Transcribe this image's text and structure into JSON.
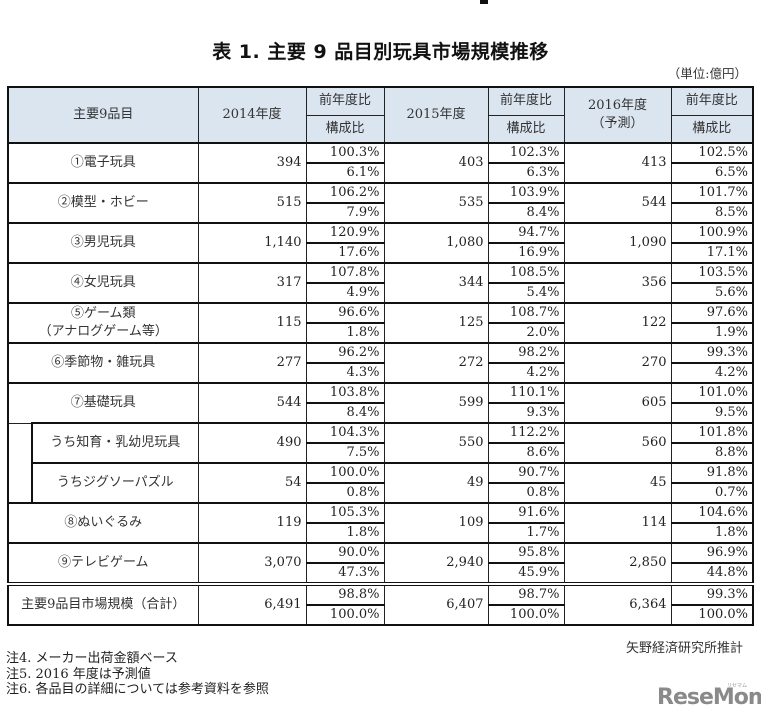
{
  "title": "表 1. 主要 9 品目別玩具市場規模推移",
  "unit": "（単位:億円）",
  "header": {
    "item": "主要9品目",
    "y2014": "2014年度",
    "y2015": "2015年度",
    "y2016": "2016年度",
    "y2016_note": "（予測）",
    "yoy": "前年度比",
    "share": "構成比"
  },
  "rows": [
    {
      "name": "①電子玩具",
      "v2014": "394",
      "yoy2014": "100.3%",
      "sh2014": "6.1%",
      "v2015": "403",
      "yoy2015": "102.3%",
      "sh2015": "6.3%",
      "v2016": "413",
      "yoy2016": "102.5%",
      "sh2016": "6.5%"
    },
    {
      "name": "②模型・ホビー",
      "v2014": "515",
      "yoy2014": "106.2%",
      "sh2014": "7.9%",
      "v2015": "535",
      "yoy2015": "103.9%",
      "sh2015": "8.4%",
      "v2016": "544",
      "yoy2016": "101.7%",
      "sh2016": "8.5%"
    },
    {
      "name": "③男児玩具",
      "v2014": "1,140",
      "yoy2014": "120.9%",
      "sh2014": "17.6%",
      "v2015": "1,080",
      "yoy2015": "94.7%",
      "sh2015": "16.9%",
      "v2016": "1,090",
      "yoy2016": "100.9%",
      "sh2016": "17.1%"
    },
    {
      "name": "④女児玩具",
      "v2014": "317",
      "yoy2014": "107.8%",
      "sh2014": "4.9%",
      "v2015": "344",
      "yoy2015": "108.5%",
      "sh2015": "5.4%",
      "v2016": "356",
      "yoy2016": "103.5%",
      "sh2016": "5.6%"
    },
    {
      "name": "⑤ゲーム類",
      "name2": "（アナログゲーム等）",
      "v2014": "115",
      "yoy2014": "96.6%",
      "sh2014": "1.8%",
      "v2015": "125",
      "yoy2015": "108.7%",
      "sh2015": "2.0%",
      "v2016": "122",
      "yoy2016": "97.6%",
      "sh2016": "1.9%"
    },
    {
      "name": "⑥季節物・雑玩具",
      "v2014": "277",
      "yoy2014": "96.2%",
      "sh2014": "4.3%",
      "v2015": "272",
      "yoy2015": "98.2%",
      "sh2015": "4.2%",
      "v2016": "270",
      "yoy2016": "99.3%",
      "sh2016": "4.2%"
    },
    {
      "name": "⑦基礎玩具",
      "v2014": "544",
      "yoy2014": "103.8%",
      "sh2014": "8.4%",
      "v2015": "599",
      "yoy2015": "110.1%",
      "sh2015": "9.3%",
      "v2016": "605",
      "yoy2016": "101.0%",
      "sh2016": "9.5%"
    },
    {
      "name": "うち知育・乳幼児玩具",
      "v2014": "490",
      "yoy2014": "104.3%",
      "sh2014": "7.5%",
      "v2015": "550",
      "yoy2015": "112.2%",
      "sh2015": "8.6%",
      "v2016": "560",
      "yoy2016": "101.8%",
      "sh2016": "8.8%"
    },
    {
      "name": "うちジグソーパズル",
      "v2014": "54",
      "yoy2014": "100.0%",
      "sh2014": "0.8%",
      "v2015": "49",
      "yoy2015": "90.7%",
      "sh2015": "0.8%",
      "v2016": "45",
      "yoy2016": "91.8%",
      "sh2016": "0.7%"
    },
    {
      "name": "⑧ぬいぐるみ",
      "v2014": "119",
      "yoy2014": "105.3%",
      "sh2014": "1.8%",
      "v2015": "109",
      "yoy2015": "91.6%",
      "sh2015": "1.7%",
      "v2016": "114",
      "yoy2016": "104.6%",
      "sh2016": "1.8%"
    },
    {
      "name": "⑨テレビゲーム",
      "v2014": "3,070",
      "yoy2014": "90.0%",
      "sh2014": "47.3%",
      "v2015": "2,940",
      "yoy2015": "95.8%",
      "sh2015": "45.9%",
      "v2016": "2,850",
      "yoy2016": "96.9%",
      "sh2016": "44.8%"
    },
    {
      "name": "主要9品目市場規模（合計）",
      "v2014": "6,491",
      "yoy2014": "98.8%",
      "sh2014": "100.0%",
      "v2015": "6,407",
      "yoy2015": "98.7%",
      "sh2015": "100.0%",
      "v2016": "6,364",
      "yoy2016": "99.3%",
      "sh2016": "100.0%"
    }
  ],
  "source": "矢野経済研究所推計",
  "notes": [
    "注4. メーカー出荷金額ベース",
    "注5. 2016 年度は予測値",
    "注6. 各品目の詳細については参考資料を参照"
  ],
  "logo": {
    "text": "ReseMom",
    "kana": "リセマム"
  }
}
